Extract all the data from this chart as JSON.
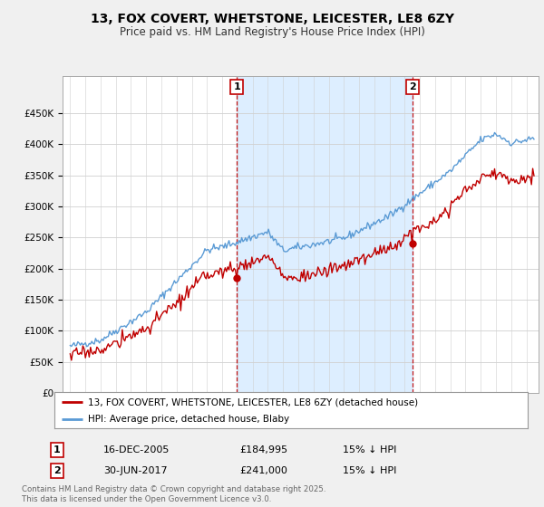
{
  "title": "13, FOX COVERT, WHETSTONE, LEICESTER, LE8 6ZY",
  "subtitle": "Price paid vs. HM Land Registry's House Price Index (HPI)",
  "ylim": [
    0,
    500000
  ],
  "yticks": [
    0,
    50000,
    100000,
    150000,
    200000,
    250000,
    300000,
    350000,
    400000,
    450000
  ],
  "ytick_labels": [
    "£0",
    "£50K",
    "£100K",
    "£150K",
    "£200K",
    "£250K",
    "£300K",
    "£350K",
    "£400K",
    "£450K"
  ],
  "hpi_color": "#5b9bd5",
  "price_color": "#c00000",
  "shade_color": "#ddeeff",
  "marker1_year": 2005.96,
  "marker1_value": 184995,
  "marker2_year": 2017.5,
  "marker2_value": 241000,
  "legend_line1": "13, FOX COVERT, WHETSTONE, LEICESTER, LE8 6ZY (detached house)",
  "legend_line2": "HPI: Average price, detached house, Blaby",
  "annotation1_num": "1",
  "annotation1_date": "16-DEC-2005",
  "annotation1_price": "£184,995",
  "annotation1_hpi": "15% ↓ HPI",
  "annotation2_num": "2",
  "annotation2_date": "30-JUN-2017",
  "annotation2_price": "£241,000",
  "annotation2_hpi": "15% ↓ HPI",
  "footer": "Contains HM Land Registry data © Crown copyright and database right 2025.\nThis data is licensed under the Open Government Licence v3.0.",
  "bg_color": "#f0f0f0",
  "plot_bg_color": "#ffffff",
  "grid_color": "#d0d0d0"
}
